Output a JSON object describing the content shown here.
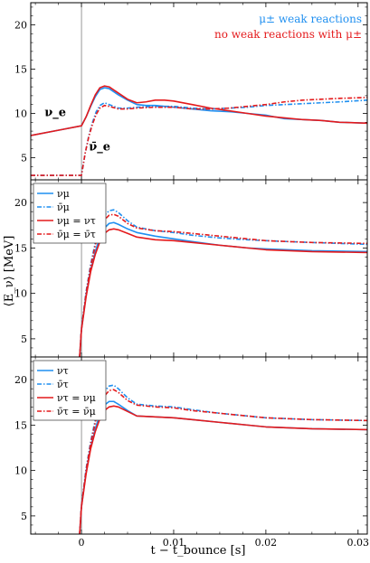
{
  "chart_data": {
    "type": "line",
    "xlabel": "t − t_bounce [s]",
    "ylabel": "⟨E_ν⟩ [MeV]",
    "xlim": [
      -0.0055,
      0.031
    ],
    "x_ticks": [
      0,
      0.01,
      0.02,
      0.03
    ],
    "x_tick_labels": [
      "0",
      "0.01",
      "0.02",
      "0.03"
    ],
    "colors": {
      "blue": "#1f8ff0",
      "red": "#e41a1c"
    },
    "panels": [
      {
        "ylim": [
          2.5,
          22.5
        ],
        "y_ticks": [
          5,
          10,
          15,
          20
        ],
        "y_tick_labels": [
          "5",
          "10",
          "15",
          "20"
        ],
        "annotations": [
          {
            "text": "μ± weak reactions",
            "color": "#1f8ff0"
          },
          {
            "text": "no weak reactions with μ±",
            "color": "#e41a1c"
          }
        ],
        "curve_labels": [
          {
            "text": "ν_e",
            "x": -0.004,
            "y": 9.7
          },
          {
            "text": "ν̄_e",
            "x": 0.0008,
            "y": 5.8
          }
        ],
        "series": [
          {
            "name": "νe (μ± weak reactions)",
            "color": "#1f8ff0",
            "style": "solid",
            "x": [
              -0.0055,
              -0.002,
              0,
              0.0005,
              0.001,
              0.0015,
              0.002,
              0.0025,
              0.003,
              0.004,
              0.005,
              0.006,
              0.007,
              0.008,
              0.009,
              0.01,
              0.012,
              0.014,
              0.016,
              0.018,
              0.02,
              0.022,
              0.024,
              0.026,
              0.028,
              0.031
            ],
            "y": [
              7.5,
              8.2,
              8.6,
              9.6,
              10.8,
              11.9,
              12.7,
              12.9,
              12.8,
              12.1,
              11.5,
              11.0,
              10.9,
              10.9,
              10.8,
              10.7,
              10.5,
              10.3,
              10.2,
              10.0,
              9.8,
              9.4,
              9.3,
              9.2,
              9.0,
              8.9
            ]
          },
          {
            "name": "νe (no weak reactions with μ±)",
            "color": "#e41a1c",
            "style": "solid",
            "x": [
              -0.0055,
              -0.002,
              0,
              0.0005,
              0.001,
              0.0015,
              0.002,
              0.0025,
              0.003,
              0.004,
              0.005,
              0.006,
              0.007,
              0.008,
              0.009,
              0.01,
              0.012,
              0.014,
              0.016,
              0.018,
              0.02,
              0.022,
              0.024,
              0.026,
              0.028,
              0.031
            ],
            "y": [
              7.5,
              8.2,
              8.6,
              9.6,
              10.9,
              12.1,
              12.9,
              13.1,
              13.0,
              12.3,
              11.6,
              11.2,
              11.3,
              11.5,
              11.5,
              11.4,
              11.0,
              10.6,
              10.3,
              10.0,
              9.7,
              9.5,
              9.3,
              9.2,
              9.0,
              8.9
            ]
          },
          {
            "name": "ν̄e (μ± weak reactions)",
            "color": "#1f8ff0",
            "style": "dashed",
            "x": [
              -0.0055,
              -0.002,
              0,
              0.0004,
              0.0008,
              0.0012,
              0.0016,
              0.002,
              0.0025,
              0.003,
              0.004,
              0.005,
              0.006,
              0.008,
              0.01,
              0.012,
              0.014,
              0.016,
              0.018,
              0.02,
              0.022,
              0.024,
              0.026,
              0.028,
              0.031
            ],
            "y": [
              3.0,
              3.0,
              3.0,
              5.5,
              7.5,
              9.0,
              10.2,
              10.9,
              11.2,
              11.0,
              10.6,
              10.6,
              10.7,
              10.8,
              10.8,
              10.6,
              10.5,
              10.6,
              10.7,
              10.9,
              11.0,
              11.1,
              11.2,
              11.3,
              11.5
            ]
          },
          {
            "name": "ν̄e (no weak reactions with μ±)",
            "color": "#e41a1c",
            "style": "dashed",
            "x": [
              -0.0055,
              -0.002,
              0,
              0.0004,
              0.0008,
              0.0012,
              0.0016,
              0.002,
              0.0025,
              0.003,
              0.004,
              0.005,
              0.006,
              0.008,
              0.01,
              0.012,
              0.014,
              0.016,
              0.018,
              0.02,
              0.022,
              0.024,
              0.026,
              0.028,
              0.031
            ],
            "y": [
              3.0,
              3.0,
              3.0,
              5.5,
              7.4,
              8.8,
              9.9,
              10.6,
              10.9,
              10.8,
              10.5,
              10.5,
              10.6,
              10.7,
              10.7,
              10.5,
              10.5,
              10.6,
              10.8,
              11.0,
              11.3,
              11.5,
              11.6,
              11.7,
              11.8
            ]
          }
        ]
      },
      {
        "ylim": [
          3.0,
          22.5
        ],
        "y_ticks": [
          5,
          10,
          15,
          20
        ],
        "y_tick_labels": [
          "5",
          "10",
          "15",
          "20"
        ],
        "legend": [
          {
            "label": "νμ",
            "color": "#1f8ff0",
            "style": "solid"
          },
          {
            "label": "ν̄μ",
            "color": "#1f8ff0",
            "style": "dashed"
          },
          {
            "label": "νμ = ντ",
            "color": "#e41a1c",
            "style": "solid"
          },
          {
            "label": "ν̄μ = ν̄τ",
            "color": "#e41a1c",
            "style": "dashed"
          }
        ],
        "series": [
          {
            "name": "νμ",
            "color": "#1f8ff0",
            "style": "solid",
            "x": [
              -0.0002,
              0,
              0.0005,
              0.001,
              0.0015,
              0.002,
              0.0025,
              0.003,
              0.0035,
              0.004,
              0.005,
              0.006,
              0.008,
              0.01,
              0.012,
              0.015,
              0.018,
              0.02,
              0.025,
              0.031
            ],
            "y": [
              3.0,
              6.0,
              9.8,
              12.6,
              14.6,
              16.2,
              17.2,
              17.7,
              17.8,
              17.6,
              17.1,
              16.7,
              16.3,
              16.0,
              15.7,
              15.3,
              15.0,
              14.9,
              14.7,
              14.6
            ]
          },
          {
            "name": "ν̄μ",
            "color": "#1f8ff0",
            "style": "dashed",
            "x": [
              -0.0002,
              0,
              0.0005,
              0.001,
              0.0015,
              0.002,
              0.0025,
              0.003,
              0.0035,
              0.004,
              0.005,
              0.006,
              0.008,
              0.01,
              0.012,
              0.015,
              0.018,
              0.02,
              0.025,
              0.031
            ],
            "y": [
              3.0,
              6.2,
              10.2,
              13.2,
              15.6,
              17.4,
              18.6,
              19.1,
              19.2,
              18.9,
              18.0,
              17.3,
              16.9,
              16.7,
              16.4,
              16.1,
              15.9,
              15.8,
              15.6,
              15.4
            ]
          },
          {
            "name": "νμ = ντ",
            "color": "#e41a1c",
            "style": "solid",
            "x": [
              -0.0002,
              0,
              0.0005,
              0.001,
              0.0015,
              0.002,
              0.0025,
              0.003,
              0.0035,
              0.004,
              0.005,
              0.006,
              0.008,
              0.01,
              0.012,
              0.015,
              0.018,
              0.02,
              0.025,
              0.031
            ],
            "y": [
              3.0,
              6.0,
              9.6,
              12.4,
              14.3,
              15.7,
              16.6,
              17.0,
              17.1,
              17.0,
              16.6,
              16.2,
              15.9,
              15.8,
              15.6,
              15.3,
              15.0,
              14.8,
              14.6,
              14.5
            ]
          },
          {
            "name": "ν̄μ = ν̄τ",
            "color": "#e41a1c",
            "style": "dashed",
            "x": [
              -0.0002,
              0,
              0.0005,
              0.001,
              0.0015,
              0.002,
              0.0025,
              0.003,
              0.0035,
              0.004,
              0.005,
              0.006,
              0.008,
              0.01,
              0.012,
              0.015,
              0.018,
              0.02,
              0.025,
              0.031
            ],
            "y": [
              3.0,
              6.1,
              10.0,
              13.0,
              15.3,
              17.0,
              18.1,
              18.6,
              18.7,
              18.5,
              17.7,
              17.2,
              16.9,
              16.8,
              16.6,
              16.3,
              16.0,
              15.8,
              15.6,
              15.5
            ]
          }
        ]
      },
      {
        "ylim": [
          3.0,
          22.5
        ],
        "y_ticks": [
          5,
          10,
          15,
          20
        ],
        "y_tick_labels": [
          "5",
          "10",
          "15",
          "20"
        ],
        "legend": [
          {
            "label": "ντ",
            "color": "#1f8ff0",
            "style": "solid"
          },
          {
            "label": "ν̄τ",
            "color": "#1f8ff0",
            "style": "dashed"
          },
          {
            "label": "ντ = νμ",
            "color": "#e41a1c",
            "style": "solid"
          },
          {
            "label": "ν̄τ = ν̄μ",
            "color": "#e41a1c",
            "style": "dashed"
          }
        ],
        "series": [
          {
            "name": "ντ",
            "color": "#1f8ff0",
            "style": "solid",
            "x": [
              -0.0002,
              0,
              0.0005,
              0.001,
              0.0015,
              0.002,
              0.0025,
              0.003,
              0.0035,
              0.004,
              0.005,
              0.006,
              0.008,
              0.01,
              0.012,
              0.015,
              0.018,
              0.02,
              0.025,
              0.031
            ],
            "y": [
              3.0,
              6.0,
              9.8,
              12.6,
              14.6,
              16.2,
              17.2,
              17.6,
              17.6,
              17.3,
              16.6,
              16.0,
              15.9,
              15.8,
              15.6,
              15.3,
              15.0,
              14.8,
              14.6,
              14.5
            ]
          },
          {
            "name": "ν̄τ",
            "color": "#1f8ff0",
            "style": "dashed",
            "x": [
              -0.0002,
              0,
              0.0005,
              0.001,
              0.0015,
              0.002,
              0.0025,
              0.003,
              0.0035,
              0.004,
              0.005,
              0.006,
              0.008,
              0.01,
              0.012,
              0.015,
              0.018,
              0.02,
              0.025,
              0.031
            ],
            "y": [
              3.0,
              6.2,
              10.2,
              13.2,
              15.6,
              17.4,
              18.7,
              19.3,
              19.4,
              19.0,
              18.0,
              17.3,
              17.1,
              17.0,
              16.7,
              16.3,
              16.0,
              15.8,
              15.6,
              15.5
            ]
          },
          {
            "name": "ντ = νμ",
            "color": "#e41a1c",
            "style": "solid",
            "x": [
              -0.0002,
              0,
              0.0005,
              0.001,
              0.0015,
              0.002,
              0.0025,
              0.003,
              0.0035,
              0.004,
              0.005,
              0.006,
              0.008,
              0.01,
              0.012,
              0.015,
              0.018,
              0.02,
              0.025,
              0.031
            ],
            "y": [
              3.0,
              6.0,
              9.6,
              12.4,
              14.3,
              15.7,
              16.6,
              17.0,
              17.1,
              17.0,
              16.5,
              16.0,
              15.9,
              15.8,
              15.6,
              15.3,
              15.0,
              14.8,
              14.6,
              14.5
            ]
          },
          {
            "name": "ν̄τ = ν̄μ",
            "color": "#e41a1c",
            "style": "dashed",
            "x": [
              -0.0002,
              0,
              0.0005,
              0.001,
              0.0015,
              0.002,
              0.0025,
              0.003,
              0.0035,
              0.004,
              0.005,
              0.006,
              0.008,
              0.01,
              0.012,
              0.015,
              0.018,
              0.02,
              0.025,
              0.031
            ],
            "y": [
              3.0,
              6.1,
              10.0,
              13.0,
              15.3,
              17.0,
              18.2,
              18.8,
              18.9,
              18.6,
              17.7,
              17.2,
              17.0,
              16.9,
              16.6,
              16.3,
              16.0,
              15.8,
              15.6,
              15.5
            ]
          }
        ]
      }
    ]
  }
}
